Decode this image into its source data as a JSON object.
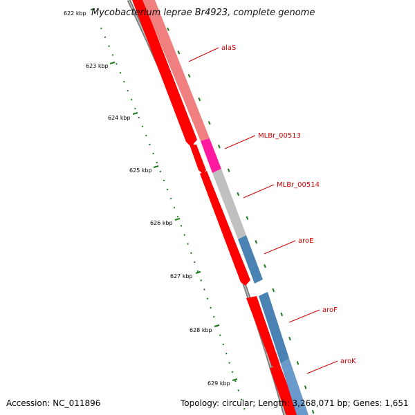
{
  "title": "Mycobacterium leprae Br4923, complete genome",
  "accession": "Accession: NC_011896",
  "summary": "Topology: circular; Length: 3,268,071 bp; Genes: 1,651",
  "colors": {
    "backbone": "#7a7a7a",
    "forward_cds": "#ff0000",
    "ruler_ticks": "#1a7a1a",
    "label_text": "#cc0000"
  },
  "ruler": {
    "labels": [
      "622 kbp",
      "623 kbp",
      "624 kbp",
      "625 kbp",
      "626 kbp",
      "627 kbp",
      "628 kbp",
      "629 kbp"
    ]
  },
  "genes": [
    {
      "name": "alaS",
      "color": "#f08080"
    },
    {
      "name": "MLBr_00513",
      "color": "#ff1aa0"
    },
    {
      "name": "MLBr_00514",
      "color": "#c0c0c0"
    },
    {
      "name": "aroE",
      "color": "#4a82b4"
    },
    {
      "name": "aroF",
      "color": "#4a82b4"
    },
    {
      "name": "aroK",
      "color": "#6a9acc"
    }
  ]
}
